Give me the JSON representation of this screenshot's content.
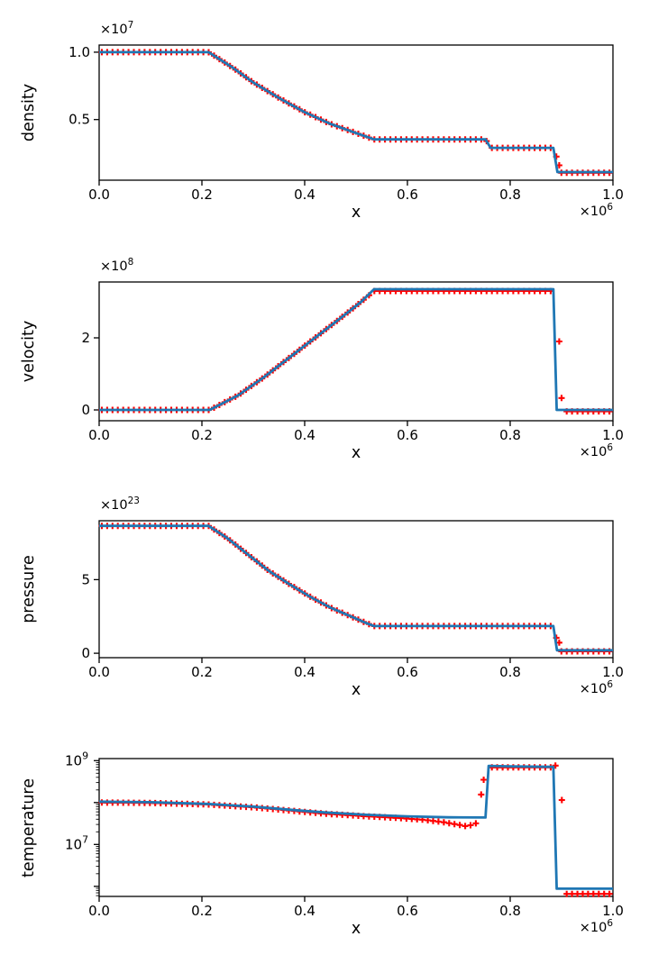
{
  "figure": {
    "background": "#ffffff",
    "line_color": "#1f77b4",
    "marker_color": "#ff0000",
    "axis_color": "#000000",
    "legend": "none"
  },
  "chart_data": [
    {
      "type": "line",
      "id": "density",
      "title": "",
      "xlabel": "x",
      "ylabel": "density",
      "x_offset_text": "×10^6",
      "y_offset_text": "×10^7",
      "xscale": "linear",
      "yscale": "linear",
      "xlim": [
        0.0,
        1.0
      ],
      "ylim": [
        0.05,
        1.053
      ],
      "xticks": [
        {
          "v": 0.0,
          "label": "0.0"
        },
        {
          "v": 0.2,
          "label": "0.2"
        },
        {
          "v": 0.4,
          "label": "0.4"
        },
        {
          "v": 0.6,
          "label": "0.6"
        },
        {
          "v": 0.8,
          "label": "0.8"
        },
        {
          "v": 1.0,
          "label": "1.0"
        }
      ],
      "yticks": [
        {
          "v": 0.5,
          "label": "0.5"
        },
        {
          "v": 1.0,
          "label": "1.0"
        }
      ],
      "series": [
        {
          "name": "exact-solution",
          "style": "line",
          "points": [
            [
              0,
              1.0
            ],
            [
              0.213,
              1.0
            ],
            [
              0.26,
              0.885
            ],
            [
              0.3,
              0.775
            ],
            [
              0.35,
              0.66
            ],
            [
              0.4,
              0.555
            ],
            [
              0.45,
              0.468
            ],
            [
              0.5,
              0.4
            ],
            [
              0.535,
              0.353
            ],
            [
              0.752,
              0.353
            ],
            [
              0.762,
              0.29
            ],
            [
              0.884,
              0.29
            ],
            [
              0.892,
              0.11
            ],
            [
              1.0,
              0.11
            ]
          ]
        },
        {
          "name": "numerical-solution",
          "style": "plus-markers",
          "segments": [
            [
              [
                0,
                1.0
              ],
              [
                0.213,
                1.0
              ],
              [
                0.26,
                0.885
              ],
              [
                0.3,
                0.775
              ],
              [
                0.35,
                0.66
              ],
              [
                0.4,
                0.555
              ],
              [
                0.45,
                0.468
              ],
              [
                0.5,
                0.4
              ],
              [
                0.535,
                0.353
              ],
              [
                0.752,
                0.353
              ],
              [
                0.762,
                0.29
              ],
              [
                0.885,
                0.29
              ]
            ],
            [
              [
                0.898,
                0.105
              ],
              [
                1.0,
                0.105
              ]
            ]
          ],
          "outliers": [
            [
              0.8898,
              0.225
            ],
            [
              0.8955,
              0.16
            ]
          ]
        }
      ]
    },
    {
      "type": "line",
      "id": "velocity",
      "title": "",
      "xlabel": "x",
      "ylabel": "velocity",
      "x_offset_text": "×10^6",
      "y_offset_text": "×10^8",
      "xscale": "linear",
      "yscale": "linear",
      "xlim": [
        0.0,
        1.0
      ],
      "ylim": [
        -0.3,
        3.55
      ],
      "xticks": [
        {
          "v": 0.0,
          "label": "0.0"
        },
        {
          "v": 0.2,
          "label": "0.2"
        },
        {
          "v": 0.4,
          "label": "0.4"
        },
        {
          "v": 0.6,
          "label": "0.6"
        },
        {
          "v": 0.8,
          "label": "0.8"
        },
        {
          "v": 1.0,
          "label": "1.0"
        }
      ],
      "yticks": [
        {
          "v": 0,
          "label": "0"
        },
        {
          "v": 2,
          "label": "2"
        }
      ],
      "series": [
        {
          "name": "exact-solution",
          "style": "line",
          "points": [
            [
              0,
              0
            ],
            [
              0.215,
              0
            ],
            [
              0.27,
              0.4
            ],
            [
              0.32,
              0.9
            ],
            [
              0.37,
              1.45
            ],
            [
              0.42,
              2.0
            ],
            [
              0.47,
              2.55
            ],
            [
              0.51,
              3.0
            ],
            [
              0.535,
              3.35
            ],
            [
              0.884,
              3.35
            ],
            [
              0.8905,
              0.0
            ],
            [
              1.0,
              0.0
            ]
          ]
        },
        {
          "name": "numerical-solution",
          "style": "plus-markers",
          "segments": [
            [
              [
                0,
                0
              ],
              [
                0.215,
                0
              ],
              [
                0.27,
                0.4
              ],
              [
                0.32,
                0.9
              ],
              [
                0.37,
                1.45
              ],
              [
                0.42,
                2.0
              ],
              [
                0.47,
                2.55
              ],
              [
                0.51,
                3.0
              ],
              [
                0.535,
                3.3
              ],
              [
                0.885,
                3.3
              ]
            ],
            [
              [
                0.904,
                -0.04
              ],
              [
                1.0,
                -0.04
              ]
            ]
          ],
          "outliers": [
            [
              0.8955,
              1.9
            ],
            [
              0.9,
              0.33
            ]
          ]
        }
      ]
    },
    {
      "type": "line",
      "id": "pressure",
      "title": "",
      "xlabel": "x",
      "ylabel": "pressure",
      "x_offset_text": "×10^6",
      "y_offset_text": "×10^23",
      "xscale": "linear",
      "yscale": "linear",
      "xlim": [
        0.0,
        1.0
      ],
      "ylim": [
        -0.3,
        9.0
      ],
      "xticks": [
        {
          "v": 0.0,
          "label": "0.0"
        },
        {
          "v": 0.2,
          "label": "0.2"
        },
        {
          "v": 0.4,
          "label": "0.4"
        },
        {
          "v": 0.6,
          "label": "0.6"
        },
        {
          "v": 0.8,
          "label": "0.8"
        },
        {
          "v": 1.0,
          "label": "1.0"
        }
      ],
      "yticks": [
        {
          "v": 0,
          "label": "0"
        },
        {
          "v": 5,
          "label": "5"
        }
      ],
      "series": [
        {
          "name": "exact-solution",
          "style": "line",
          "points": [
            [
              0,
              8.65
            ],
            [
              0.213,
              8.65
            ],
            [
              0.25,
              7.8
            ],
            [
              0.29,
              6.7
            ],
            [
              0.33,
              5.6
            ],
            [
              0.37,
              4.7
            ],
            [
              0.41,
              3.85
            ],
            [
              0.45,
              3.1
            ],
            [
              0.49,
              2.5
            ],
            [
              0.52,
              2.05
            ],
            [
              0.535,
              1.85
            ],
            [
              0.884,
              1.85
            ],
            [
              0.891,
              0.2
            ],
            [
              1.0,
              0.2
            ]
          ]
        },
        {
          "name": "numerical-solution",
          "style": "plus-markers",
          "segments": [
            [
              [
                0,
                8.65
              ],
              [
                0.213,
                8.65
              ],
              [
                0.25,
                7.8
              ],
              [
                0.29,
                6.7
              ],
              [
                0.33,
                5.6
              ],
              [
                0.37,
                4.7
              ],
              [
                0.41,
                3.85
              ],
              [
                0.45,
                3.1
              ],
              [
                0.49,
                2.5
              ],
              [
                0.52,
                2.05
              ],
              [
                0.535,
                1.85
              ],
              [
                0.885,
                1.85
              ]
            ],
            [
              [
                0.898,
                0.13
              ],
              [
                1.0,
                0.13
              ]
            ]
          ],
          "outliers": [
            [
              0.8898,
              1.05
            ],
            [
              0.8955,
              0.72
            ]
          ]
        }
      ]
    },
    {
      "type": "line",
      "id": "temperature",
      "title": "",
      "xlabel": "x",
      "ylabel": "temperature",
      "x_offset_text": "×10^6",
      "y_offset_text": "",
      "xscale": "linear",
      "yscale": "log",
      "xlim": [
        0.0,
        1.0
      ],
      "ylim": [
        575000,
        1120000000.0
      ],
      "xticks": [
        {
          "v": 0.0,
          "label": "0.0"
        },
        {
          "v": 0.2,
          "label": "0.2"
        },
        {
          "v": 0.4,
          "label": "0.4"
        },
        {
          "v": 0.6,
          "label": "0.6"
        },
        {
          "v": 0.8,
          "label": "0.8"
        },
        {
          "v": 1.0,
          "label": "1.0"
        }
      ],
      "yticks": [
        {
          "v": 10000000.0,
          "label": "10^7"
        },
        {
          "v": 1000000000.0,
          "label": "10^9"
        }
      ],
      "unlabeled_major_yticks": [
        1000000.0,
        100000000.0
      ],
      "log_minor_ticks": true,
      "series": [
        {
          "name": "exact-solution",
          "style": "line",
          "points": [
            [
              0,
              105000000.0
            ],
            [
              0.1,
              102000000.0
            ],
            [
              0.21,
              93000000.0
            ],
            [
              0.3,
              80000000.0
            ],
            [
              0.38,
              66000000.0
            ],
            [
              0.44,
              58000000.0
            ],
            [
              0.52,
              51000000.0
            ],
            [
              0.6,
              47000000.0
            ],
            [
              0.68,
              44500000.0
            ],
            [
              0.752,
              44000000.0
            ],
            [
              0.758,
              750000000.0
            ],
            [
              0.8,
              730000000.0
            ],
            [
              0.884,
              710000000.0
            ],
            [
              0.8905,
              880000.0
            ],
            [
              1.0,
              880000.0
            ]
          ]
        },
        {
          "name": "numerical-solution",
          "style": "plus-markers",
          "segments": [
            [
              [
                0,
                100000000.0
              ],
              [
                0.1,
                98000000.0
              ],
              [
                0.21,
                90000000.0
              ],
              [
                0.3,
                77000000.0
              ],
              [
                0.38,
                63000000.0
              ],
              [
                0.44,
                54000000.0
              ],
              [
                0.52,
                47000000.0
              ],
              [
                0.58,
                43000000.0
              ],
              [
                0.63,
                39000000.0
              ],
              [
                0.67,
                34000000.0
              ],
              [
                0.7,
                29500000.0
              ],
              [
                0.715,
                27000000.0
              ],
              [
                0.728,
                30000000.0
              ],
              [
                0.736,
                33000000.0
              ]
            ],
            [
              [
                0.757,
                690000000.0
              ],
              [
                0.885,
                690000000.0
              ]
            ],
            [
              [
                0.908,
                660000.0
              ],
              [
                1.0,
                660000.0
              ]
            ]
          ],
          "outliers": [
            [
              0.7435,
              155000000.0
            ],
            [
              0.7485,
              350000000.0
            ],
            [
              0.888,
              760000000.0
            ],
            [
              0.9005,
              115000000.0
            ]
          ]
        }
      ]
    }
  ]
}
